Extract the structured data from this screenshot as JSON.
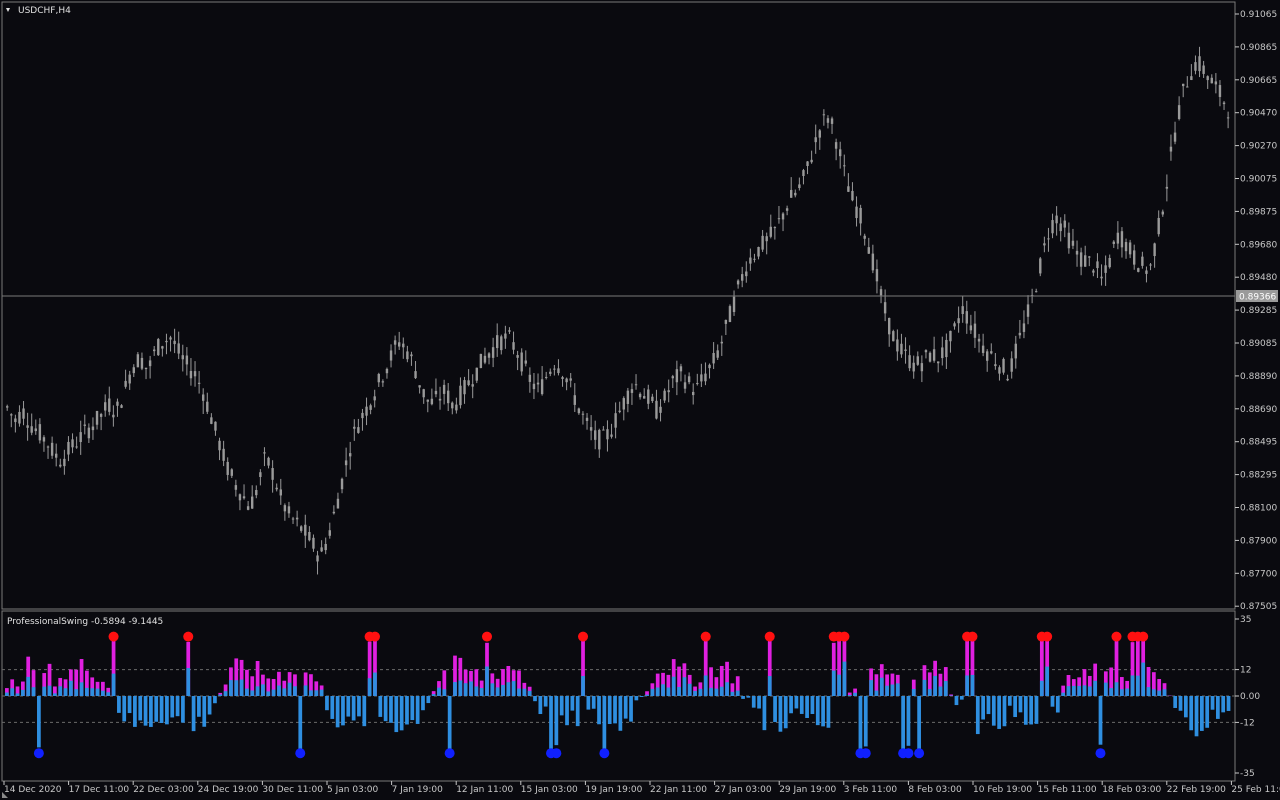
{
  "main_chart": {
    "title": "USDCHF,H4",
    "price_ticks": [
      "0.91065",
      "0.90865",
      "0.90665",
      "0.90470",
      "0.90270",
      "0.90075",
      "0.89875",
      "0.89680",
      "0.89480",
      "0.89285",
      "0.89085",
      "0.88890",
      "0.88690",
      "0.88495",
      "0.88295",
      "0.88100",
      "0.87900",
      "0.87700",
      "0.87505"
    ],
    "current_price": "0.89366",
    "time_labels": [
      "14 Dec 2020",
      "17 Dec 11:00",
      "22 Dec 03:00",
      "24 Dec 19:00",
      "30 Dec 11:00",
      "5 Jan 03:00",
      "7 Jan 19:00",
      "12 Jan 11:00",
      "15 Jan 03:00",
      "19 Jan 19:00",
      "22 Jan 11:00",
      "27 Jan 03:00",
      "29 Jan 19:00",
      "3 Feb 11:00",
      "8 Feb 03:00",
      "10 Feb 19:00",
      "15 Feb 11:00",
      "18 Feb 03:00",
      "22 Feb 19:00",
      "25 Feb 11:00"
    ],
    "candle_color": "#9a9a9a",
    "price_path_closes": [
      0.887,
      0.8862,
      0.8868,
      0.886,
      0.8855,
      0.885,
      0.8842,
      0.8838,
      0.8845,
      0.885,
      0.8855,
      0.886,
      0.8865,
      0.8872,
      0.8868,
      0.888,
      0.8895,
      0.89,
      0.8892,
      0.8905,
      0.891,
      0.8912,
      0.8902,
      0.8895,
      0.889,
      0.888,
      0.8865,
      0.885,
      0.8835,
      0.8825,
      0.8818,
      0.881,
      0.8822,
      0.884,
      0.883,
      0.8815,
      0.8805,
      0.88,
      0.8795,
      0.8788,
      0.878,
      0.8792,
      0.881,
      0.883,
      0.885,
      0.8862,
      0.887,
      0.888,
      0.889,
      0.89,
      0.891,
      0.8905,
      0.8895,
      0.888,
      0.8872,
      0.8875,
      0.888,
      0.887,
      0.8878,
      0.8885,
      0.8892,
      0.89,
      0.8905,
      0.891,
      0.8912,
      0.8905,
      0.8895,
      0.8885,
      0.888,
      0.889,
      0.8898,
      0.8892,
      0.8882,
      0.887,
      0.886,
      0.8852,
      0.885,
      0.8855,
      0.8865,
      0.8875,
      0.8885,
      0.888,
      0.8875,
      0.8868,
      0.8875,
      0.8885,
      0.889,
      0.8885,
      0.888,
      0.8888,
      0.8895,
      0.8905,
      0.892,
      0.8935,
      0.895,
      0.896,
      0.8965,
      0.897,
      0.8975,
      0.8985,
      0.8995,
      0.9,
      0.901,
      0.9025,
      0.904,
      0.9045,
      0.903,
      0.901,
      0.8995,
      0.8985,
      0.897,
      0.895,
      0.893,
      0.8915,
      0.8905,
      0.89,
      0.8895,
      0.8898,
      0.8902,
      0.89,
      0.8905,
      0.8915,
      0.893,
      0.8922,
      0.8912,
      0.8905,
      0.89,
      0.8895,
      0.889,
      0.8905,
      0.892,
      0.8935,
      0.8955,
      0.8975,
      0.8985,
      0.8978,
      0.8968,
      0.896,
      0.8958,
      0.8955,
      0.8945,
      0.896,
      0.8975,
      0.8968,
      0.896,
      0.8955,
      0.8952,
      0.8975,
      0.9,
      0.903,
      0.9055,
      0.907,
      0.9078,
      0.9072,
      0.9065,
      0.9058,
      0.905
    ]
  },
  "indicator": {
    "title": "ProfessionalSwing -0.5894 -9.1445",
    "levels": [
      "35",
      "12",
      "0.00",
      "-12",
      "-35"
    ],
    "level_values": [
      35,
      12,
      0,
      -12,
      -35
    ],
    "ymax": 35,
    "ymin": -35,
    "color_positive": "#e020e0",
    "color_positive_inner": "#2f8fe0",
    "color_negative": "#2f8fe0",
    "color_top_dot": "#ff1010",
    "color_bottom_dot": "#1020ff",
    "red_dots": [
      20,
      34,
      68,
      69,
      90,
      108,
      131,
      143,
      155,
      156,
      157,
      180,
      181,
      194,
      195,
      208,
      211,
      212,
      213
    ],
    "blue_dots": [
      6,
      55,
      83,
      102,
      103,
      112,
      160,
      161,
      168,
      169,
      171,
      205
    ]
  },
  "colors": {
    "background": "#0a0a0f",
    "axis": "#c8c8c8",
    "grid_dashed": "#6a6a6a",
    "current_price_bg": "#9a9a9a"
  }
}
